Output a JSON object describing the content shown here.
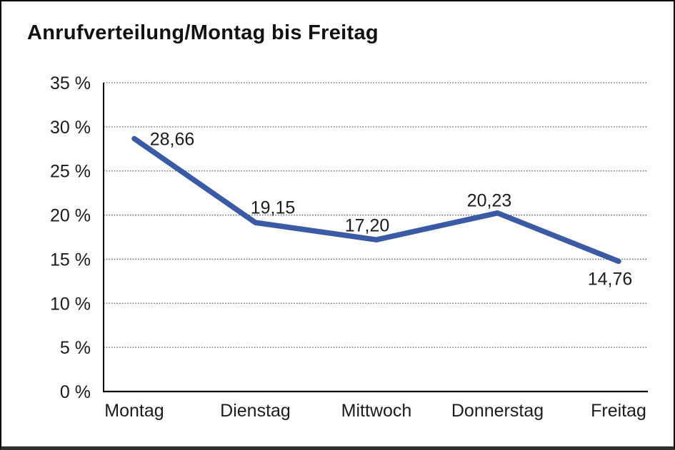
{
  "chart_data": {
    "type": "line",
    "title": "Anrufverteilung/Montag bis Freitag",
    "categories": [
      "Montag",
      "Dienstag",
      "Mittwoch",
      "Donnerstag",
      "Freitag"
    ],
    "values": [
      28.66,
      19.15,
      17.2,
      20.23,
      14.76
    ],
    "value_labels": [
      "28,66",
      "19,15",
      "17,20",
      "20,23",
      "14,76"
    ],
    "y_ticks": [
      0,
      5,
      10,
      15,
      20,
      25,
      30,
      35
    ],
    "y_tick_labels": [
      "0 %",
      "5 %",
      "10 %",
      "15 %",
      "20 %",
      "25 %",
      "30 %",
      "35 %"
    ],
    "ylim": [
      0,
      35
    ],
    "xlabel": "",
    "ylabel": "",
    "grid": "horizontal-dotted",
    "legend": "none",
    "line_color": "#3A5AA5",
    "gridline_color": "#5a5a5a",
    "axis_color": "#000000"
  }
}
